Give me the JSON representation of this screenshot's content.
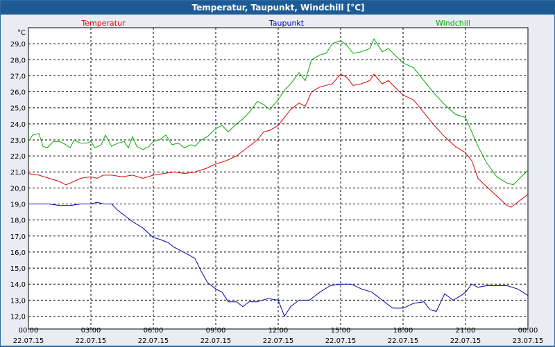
{
  "window": {
    "title": "Temperatur, Taupunkt, Windchill [°C]"
  },
  "chart_data": {
    "type": "line",
    "title": "Temperatur, Taupunkt, Windchill [°C]",
    "ylabel": "°C",
    "ylim": [
      11.2,
      30.0
    ],
    "xlim": [
      0,
      24
    ],
    "grid": true,
    "legend_placement": "top",
    "y_ticks": [
      "29,0",
      "28,0",
      "27,0",
      "26,0",
      "25,0",
      "24,0",
      "23,0",
      "22,0",
      "21,0",
      "20,0",
      "19,0",
      "18,0",
      "17,0",
      "16,0",
      "15,0",
      "14,0",
      "13,0",
      "12,0"
    ],
    "y_tick_values": [
      29,
      28,
      27,
      26,
      25,
      24,
      23,
      22,
      21,
      20,
      19,
      18,
      17,
      16,
      15,
      14,
      13,
      12
    ],
    "x_ticks": [
      {
        "time": "00:00",
        "date": "22.07.15",
        "hour": 0
      },
      {
        "time": "03:00",
        "date": "22.07.15",
        "hour": 3
      },
      {
        "time": "06:00",
        "date": "22.07.15",
        "hour": 6
      },
      {
        "time": "09:00",
        "date": "22.07.15",
        "hour": 9
      },
      {
        "time": "12:00",
        "date": "22.07.15",
        "hour": 12
      },
      {
        "time": "15:00",
        "date": "22.07.15",
        "hour": 15
      },
      {
        "time": "18:00",
        "date": "22.07.15",
        "hour": 18
      },
      {
        "time": "21:00",
        "date": "22.07.15",
        "hour": 21
      },
      {
        "time": "00:00",
        "date": "23.07.15",
        "hour": 24
      }
    ],
    "series": [
      {
        "name": "Temperatur",
        "color": "#dd0000",
        "points": [
          [
            0,
            20.9
          ],
          [
            0.5,
            20.8
          ],
          [
            1,
            20.6
          ],
          [
            1.5,
            20.4
          ],
          [
            1.8,
            20.2
          ],
          [
            2,
            20.3
          ],
          [
            2.5,
            20.6
          ],
          [
            3,
            20.7
          ],
          [
            3.3,
            20.6
          ],
          [
            3.6,
            20.8
          ],
          [
            4,
            20.8
          ],
          [
            4.5,
            20.7
          ],
          [
            5,
            20.8
          ],
          [
            5.5,
            20.6
          ],
          [
            6,
            20.8
          ],
          [
            6.5,
            20.9
          ],
          [
            7,
            21.0
          ],
          [
            7.5,
            20.9
          ],
          [
            8,
            21.0
          ],
          [
            8.5,
            21.2
          ],
          [
            9,
            21.5
          ],
          [
            9.5,
            21.7
          ],
          [
            10,
            22.0
          ],
          [
            10.5,
            22.5
          ],
          [
            11,
            23.0
          ],
          [
            11.3,
            23.5
          ],
          [
            11.6,
            23.6
          ],
          [
            12,
            23.9
          ],
          [
            12.3,
            24.4
          ],
          [
            12.6,
            24.9
          ],
          [
            13,
            25.3
          ],
          [
            13.3,
            25.1
          ],
          [
            13.6,
            26.0
          ],
          [
            14,
            26.3
          ],
          [
            14.3,
            26.4
          ],
          [
            14.6,
            26.5
          ],
          [
            15,
            27.1
          ],
          [
            15.3,
            26.9
          ],
          [
            15.6,
            26.4
          ],
          [
            16,
            26.5
          ],
          [
            16.4,
            26.7
          ],
          [
            16.6,
            27.1
          ],
          [
            17,
            26.5
          ],
          [
            17.3,
            26.7
          ],
          [
            17.6,
            26.3
          ],
          [
            18,
            25.8
          ],
          [
            18.5,
            25.5
          ],
          [
            19,
            24.7
          ],
          [
            19.5,
            23.9
          ],
          [
            20,
            23.2
          ],
          [
            20.5,
            22.6
          ],
          [
            21,
            22.2
          ],
          [
            21.3,
            21.7
          ],
          [
            21.6,
            20.6
          ],
          [
            22,
            20.1
          ],
          [
            22.5,
            19.5
          ],
          [
            23,
            18.9
          ],
          [
            23.2,
            18.8
          ],
          [
            23.5,
            19.1
          ],
          [
            24,
            19.6
          ]
        ]
      },
      {
        "name": "Taupunkt",
        "color": "#0000aa",
        "points": [
          [
            0,
            19.0
          ],
          [
            0.5,
            19.0
          ],
          [
            1,
            19.0
          ],
          [
            1.5,
            18.9
          ],
          [
            2,
            18.9
          ],
          [
            2.5,
            19.0
          ],
          [
            3,
            19.0
          ],
          [
            3.3,
            19.1
          ],
          [
            3.6,
            19.0
          ],
          [
            4,
            19.0
          ],
          [
            4.3,
            18.6
          ],
          [
            4.7,
            18.2
          ],
          [
            5,
            17.9
          ],
          [
            5.5,
            17.5
          ],
          [
            6,
            16.9
          ],
          [
            6.3,
            16.8
          ],
          [
            6.7,
            16.6
          ],
          [
            7,
            16.3
          ],
          [
            7.3,
            16.1
          ],
          [
            7.6,
            15.9
          ],
          [
            8,
            15.6
          ],
          [
            8.3,
            14.8
          ],
          [
            8.6,
            14.1
          ],
          [
            9,
            13.7
          ],
          [
            9.3,
            13.5
          ],
          [
            9.6,
            12.9
          ],
          [
            10,
            12.9
          ],
          [
            10.3,
            12.6
          ],
          [
            10.6,
            12.9
          ],
          [
            11,
            12.9
          ],
          [
            11.5,
            13.1
          ],
          [
            12,
            13.0
          ],
          [
            12.3,
            12.0
          ],
          [
            12.6,
            12.6
          ],
          [
            13,
            13.0
          ],
          [
            13.5,
            13.0
          ],
          [
            14,
            13.5
          ],
          [
            14.5,
            13.9
          ],
          [
            15,
            14.0
          ],
          [
            15.5,
            14.0
          ],
          [
            16,
            13.7
          ],
          [
            16.5,
            13.5
          ],
          [
            17,
            13.0
          ],
          [
            17.5,
            12.5
          ],
          [
            18,
            12.5
          ],
          [
            18.5,
            12.8
          ],
          [
            19,
            12.9
          ],
          [
            19.3,
            12.4
          ],
          [
            19.6,
            12.3
          ],
          [
            20,
            13.4
          ],
          [
            20.4,
            13.0
          ],
          [
            20.8,
            13.3
          ],
          [
            21,
            13.5
          ],
          [
            21.3,
            14.0
          ],
          [
            21.6,
            13.8
          ],
          [
            22,
            13.9
          ],
          [
            22.5,
            13.9
          ],
          [
            23,
            13.9
          ],
          [
            23.5,
            13.7
          ],
          [
            24,
            13.3
          ]
        ]
      },
      {
        "name": "Windchill",
        "color": "#00aa00",
        "points": [
          [
            0,
            22.9
          ],
          [
            0.2,
            23.3
          ],
          [
            0.5,
            23.4
          ],
          [
            0.7,
            22.6
          ],
          [
            0.9,
            22.5
          ],
          [
            1.2,
            22.9
          ],
          [
            1.5,
            22.9
          ],
          [
            1.8,
            22.7
          ],
          [
            2,
            22.5
          ],
          [
            2.2,
            23.0
          ],
          [
            2.5,
            22.8
          ],
          [
            2.8,
            22.8
          ],
          [
            3,
            22.9
          ],
          [
            3.2,
            22.5
          ],
          [
            3.5,
            22.7
          ],
          [
            3.7,
            23.3
          ],
          [
            4,
            22.6
          ],
          [
            4.3,
            22.8
          ],
          [
            4.6,
            22.9
          ],
          [
            4.8,
            22.5
          ],
          [
            5,
            23.2
          ],
          [
            5.2,
            22.6
          ],
          [
            5.5,
            22.4
          ],
          [
            5.8,
            22.6
          ],
          [
            6,
            22.9
          ],
          [
            6.3,
            23.0
          ],
          [
            6.6,
            23.3
          ],
          [
            6.9,
            22.7
          ],
          [
            7.2,
            22.8
          ],
          [
            7.5,
            22.5
          ],
          [
            7.8,
            22.7
          ],
          [
            8,
            22.6
          ],
          [
            8.3,
            23.0
          ],
          [
            8.6,
            23.2
          ],
          [
            9,
            23.7
          ],
          [
            9.3,
            23.9
          ],
          [
            9.6,
            23.5
          ],
          [
            10,
            24.0
          ],
          [
            10.3,
            24.3
          ],
          [
            10.6,
            24.7
          ],
          [
            11,
            25.4
          ],
          [
            11.3,
            25.2
          ],
          [
            11.6,
            24.9
          ],
          [
            12,
            25.5
          ],
          [
            12.3,
            26.1
          ],
          [
            12.6,
            26.5
          ],
          [
            13,
            27.2
          ],
          [
            13.3,
            26.7
          ],
          [
            13.6,
            28.0
          ],
          [
            14,
            28.3
          ],
          [
            14.3,
            28.4
          ],
          [
            14.6,
            29.0
          ],
          [
            15,
            29.2
          ],
          [
            15.3,
            28.9
          ],
          [
            15.6,
            28.4
          ],
          [
            16,
            28.5
          ],
          [
            16.4,
            28.7
          ],
          [
            16.6,
            29.3
          ],
          [
            17,
            28.5
          ],
          [
            17.3,
            28.7
          ],
          [
            17.6,
            28.3
          ],
          [
            18,
            27.8
          ],
          [
            18.5,
            27.5
          ],
          [
            19,
            26.7
          ],
          [
            19.5,
            25.9
          ],
          [
            20,
            25.2
          ],
          [
            20.5,
            24.6
          ],
          [
            21,
            24.4
          ],
          [
            21.3,
            23.5
          ],
          [
            21.6,
            22.6
          ],
          [
            22,
            21.6
          ],
          [
            22.5,
            20.7
          ],
          [
            23,
            20.3
          ],
          [
            23.3,
            20.2
          ],
          [
            23.6,
            20.6
          ],
          [
            24,
            21.1
          ]
        ]
      }
    ]
  }
}
